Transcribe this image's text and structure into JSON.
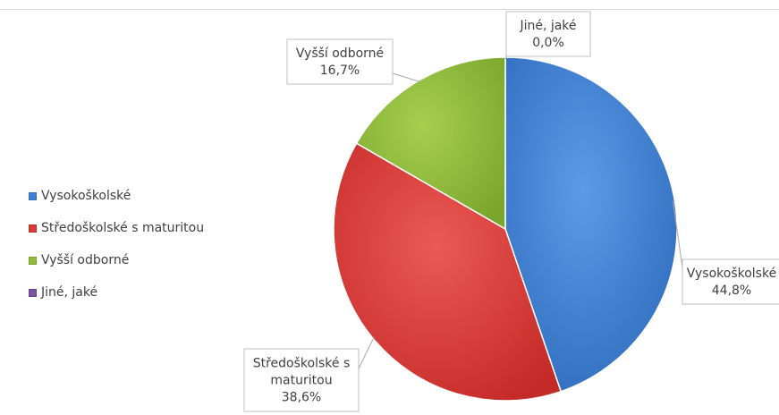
{
  "chart_data": {
    "type": "pie",
    "title": "",
    "categories": [
      "Vysokoškolské",
      "Středoškolské s maturitou",
      "Vyšší odborné",
      "Jiné, jaké"
    ],
    "values": [
      44.8,
      38.6,
      16.7,
      0.0
    ],
    "unit": "%",
    "colors": [
      "#3f7fd4",
      "#d83b36",
      "#8fbb38",
      "#7a52a4"
    ],
    "data_labels": [
      {
        "lines": [
          "Vysokoškolské",
          "44,8%"
        ]
      },
      {
        "lines": [
          "Středoškolské s",
          "maturitou",
          "38,6%"
        ]
      },
      {
        "lines": [
          "Vyšší odborné",
          "16,7%"
        ]
      },
      {
        "lines": [
          "Jiné, jaké",
          "0,0%"
        ]
      }
    ],
    "legend": {
      "position": "left",
      "items": [
        "Vysokoškolské",
        "Středoškolské s maturitou",
        "Vyšší odborné",
        "Jiné, jaké"
      ]
    }
  }
}
